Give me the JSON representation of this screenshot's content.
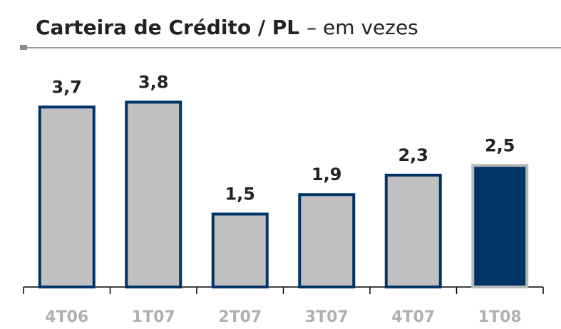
{
  "chart_data": {
    "type": "bar",
    "title": "Carteira de Crédito / PL",
    "subtitle": "– em vezes",
    "categories": [
      "4T06",
      "1T07",
      "2T07",
      "3T07",
      "4T07",
      "1T08"
    ],
    "values": [
      3.7,
      3.8,
      1.5,
      1.9,
      2.3,
      2.5
    ],
    "value_labels": [
      "3,7",
      "3,8",
      "1,5",
      "1,9",
      "2,3",
      "2,5"
    ],
    "colors": [
      "#c0c0c0",
      "#c0c0c0",
      "#c0c0c0",
      "#c0c0c0",
      "#c0c0c0",
      "#003366"
    ],
    "edgecolors": [
      "#003366",
      "#003366",
      "#003366",
      "#003366",
      "#003366",
      "#b8b8b8"
    ],
    "ylim": [
      0,
      4.1
    ]
  }
}
